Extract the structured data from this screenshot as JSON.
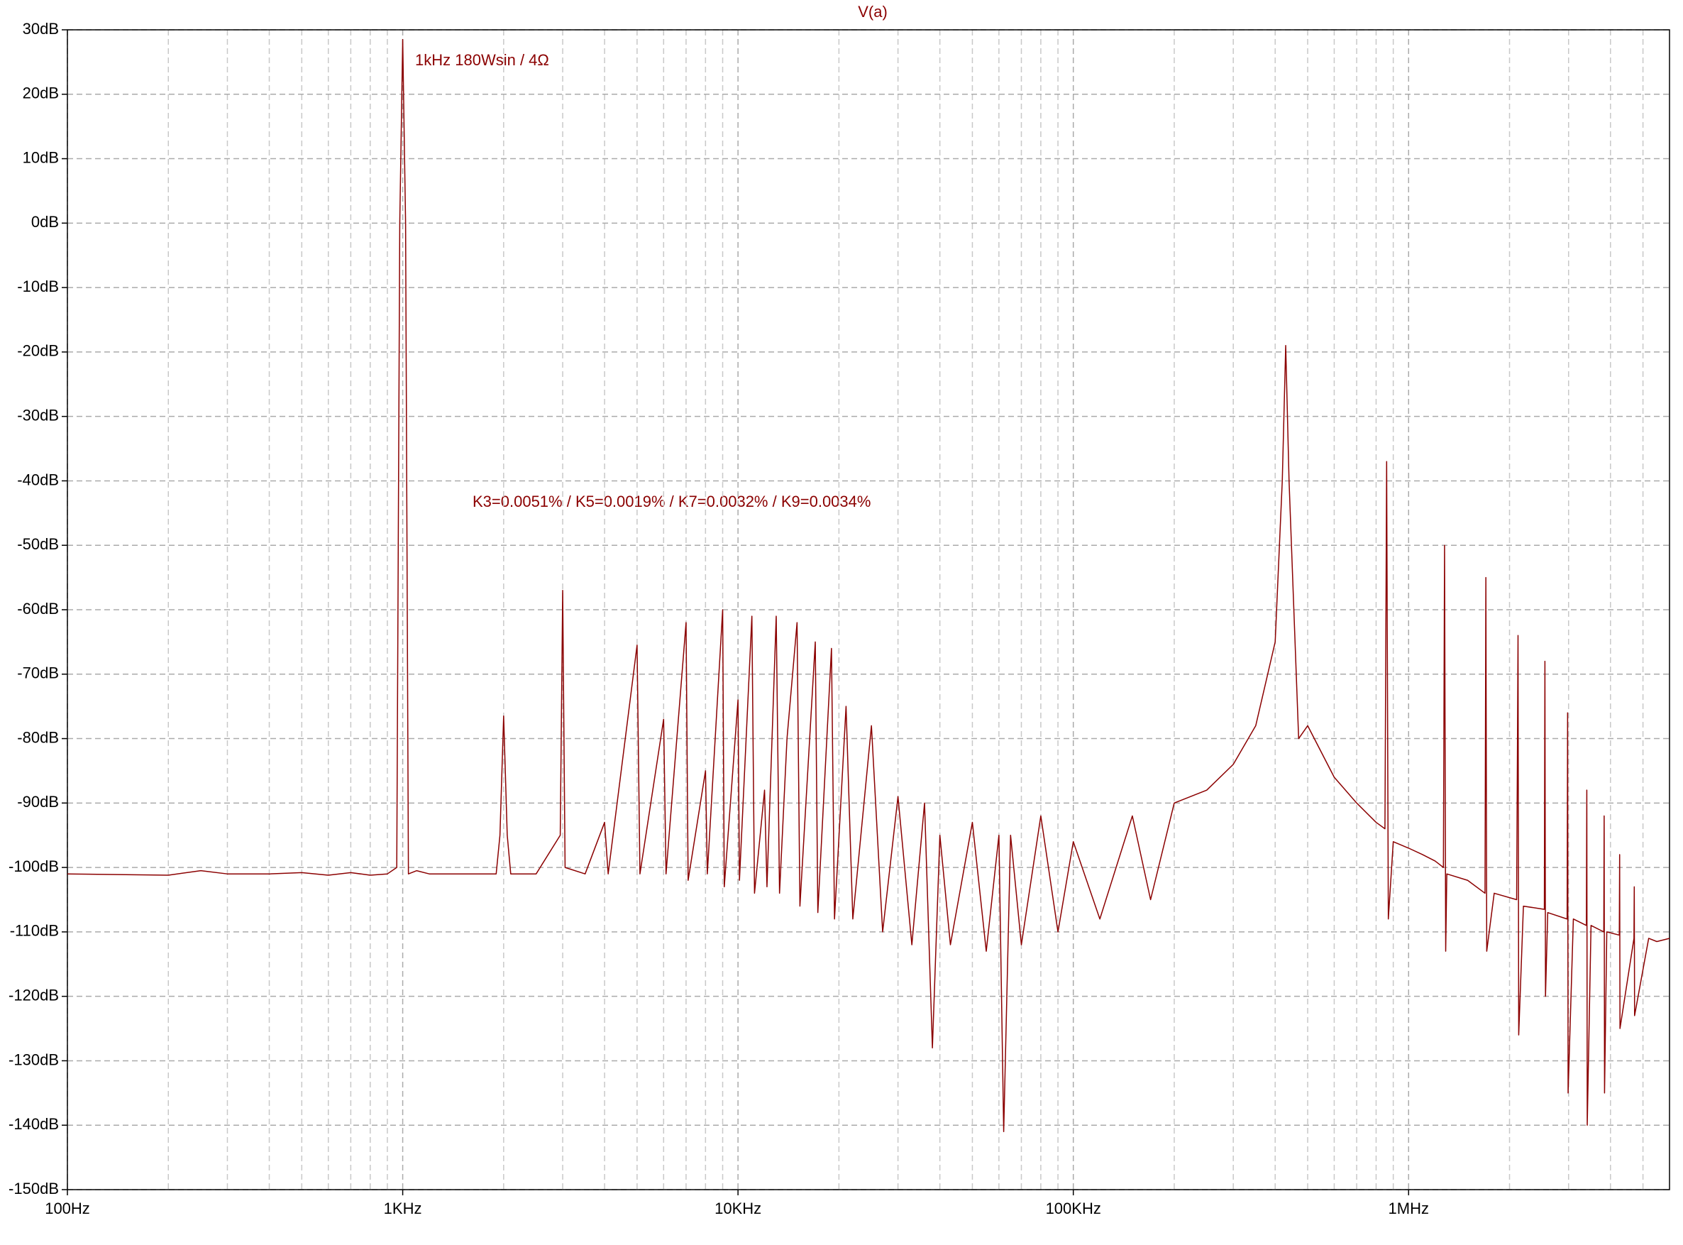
{
  "chart_data": {
    "type": "line",
    "title": "V(a)",
    "annotations": [
      "1kHz  180Wsin / 4Ω",
      "K3=0.0051% / K5=0.0019% / K7=0.0032% / K9=0.0034%"
    ],
    "x_scale": "log",
    "grid": true,
    "color": "#8b0000",
    "xlim": [
      100,
      6000000
    ],
    "ylim": [
      -150,
      30
    ],
    "xticks": [
      {
        "value": 100,
        "label": "100Hz"
      },
      {
        "value": 1000,
        "label": "1KHz"
      },
      {
        "value": 10000,
        "label": "10KHz"
      },
      {
        "value": 100000,
        "label": "100KHz"
      },
      {
        "value": 1000000,
        "label": "1MHz"
      }
    ],
    "xminorticks": [
      200,
      300,
      400,
      500,
      600,
      700,
      800,
      900,
      2000,
      3000,
      4000,
      5000,
      6000,
      7000,
      8000,
      9000,
      20000,
      30000,
      40000,
      50000,
      60000,
      70000,
      80000,
      90000,
      200000,
      300000,
      400000,
      500000,
      600000,
      700000,
      800000,
      900000,
      2000000,
      3000000,
      4000000,
      5000000
    ],
    "yticks": [
      {
        "value": 30,
        "label": "30dB"
      },
      {
        "value": 20,
        "label": "20dB"
      },
      {
        "value": 10,
        "label": "10dB"
      },
      {
        "value": 0,
        "label": "0dB"
      },
      {
        "value": -10,
        "label": "-10dB"
      },
      {
        "value": -20,
        "label": "-20dB"
      },
      {
        "value": -30,
        "label": "-30dB"
      },
      {
        "value": -40,
        "label": "-40dB"
      },
      {
        "value": -50,
        "label": "-50dB"
      },
      {
        "value": -60,
        "label": "-60dB"
      },
      {
        "value": -70,
        "label": "-70dB"
      },
      {
        "value": -80,
        "label": "-80dB"
      },
      {
        "value": -90,
        "label": "-90dB"
      },
      {
        "value": -100,
        "label": "-100dB"
      },
      {
        "value": -110,
        "label": "-110dB"
      },
      {
        "value": -120,
        "label": "-120dB"
      },
      {
        "value": -130,
        "label": "-130dB"
      },
      {
        "value": -140,
        "label": "-140dB"
      },
      {
        "value": -150,
        "label": "-150dB"
      }
    ],
    "x": [
      100,
      200,
      250,
      300,
      400,
      500,
      600,
      700,
      800,
      900,
      960,
      980,
      1000,
      1020,
      1040,
      1100,
      1200,
      1500,
      1900,
      1950,
      2000,
      2050,
      2100,
      2500,
      2950,
      3000,
      3050,
      3500,
      4000,
      4100,
      5000,
      5100,
      6000,
      6100,
      7000,
      7100,
      8000,
      8100,
      9000,
      9100,
      10000,
      10100,
      11000,
      11200,
      12000,
      12200,
      13000,
      13300,
      14000,
      15000,
      15300,
      17000,
      17300,
      19000,
      19400,
      21000,
      22000,
      25000,
      27000,
      30000,
      33000,
      36000,
      38000,
      40000,
      43000,
      50000,
      55000,
      60000,
      62000,
      65000,
      70000,
      80000,
      90000,
      100000,
      120000,
      150000,
      170000,
      200000,
      250000,
      300000,
      350000,
      400000,
      420000,
      430000,
      440000,
      460000,
      470000,
      500000,
      600000,
      700000,
      800000,
      850000,
      860000,
      870000,
      900000,
      1000000,
      1100000,
      1200000,
      1270000,
      1280000,
      1290000,
      1300000,
      1500000,
      1690000,
      1700000,
      1710000,
      1800000,
      2100000,
      2120000,
      2130000,
      2200000,
      2540000,
      2550000,
      2560000,
      2600000,
      2970000,
      2980000,
      2990000,
      3100000,
      3390000,
      3400000,
      3410000,
      3500000,
      3820000,
      3830000,
      3840000,
      3900000,
      4250000,
      4260000,
      4270000,
      4700000,
      4710000,
      4720000,
      5200000,
      5500000,
      6000000
    ],
    "series": [
      {
        "name": "V(a)",
        "color": "#8b0000",
        "values": [
          -101,
          -101.2,
          -100.5,
          -101,
          -101,
          -100.8,
          -101.2,
          -100.8,
          -101.2,
          -101,
          -100,
          0,
          28.5,
          0,
          -101,
          -100.5,
          -101,
          -101,
          -101,
          -95,
          -76.5,
          -95,
          -101,
          -101,
          -95,
          -57,
          -100,
          -101,
          -93,
          -101,
          -65.5,
          -101,
          -77,
          -101,
          -62,
          -102,
          -85,
          -101,
          -60,
          -103,
          -74,
          -102,
          -61,
          -104,
          -88,
          -103,
          -61,
          -104,
          -80,
          -62,
          -106,
          -65,
          -107,
          -66,
          -108,
          -75,
          -108,
          -78,
          -110,
          -89,
          -112,
          -90,
          -128,
          -95,
          -112,
          -93,
          -113,
          -95,
          -141,
          -95,
          -112,
          -92,
          -110,
          -96,
          -108,
          -92,
          -105,
          -90,
          -88,
          -84,
          -78,
          -65,
          -40,
          -19,
          -40,
          -67,
          -80,
          -78,
          -86,
          -90,
          -93,
          -94,
          -37,
          -108,
          -96,
          -97,
          -98,
          -99,
          -100,
          -50,
          -113,
          -101,
          -102,
          -104,
          -55,
          -113,
          -104,
          -105,
          -64,
          -126,
          -106,
          -106.5,
          -68,
          -120,
          -107,
          -108,
          -76,
          -135,
          -108,
          -109,
          -88,
          -140,
          -109,
          -110,
          -92,
          -135,
          -110,
          -110.5,
          -98,
          -125,
          -111,
          -103,
          -123,
          -111,
          -111.5,
          -111
        ]
      }
    ]
  }
}
